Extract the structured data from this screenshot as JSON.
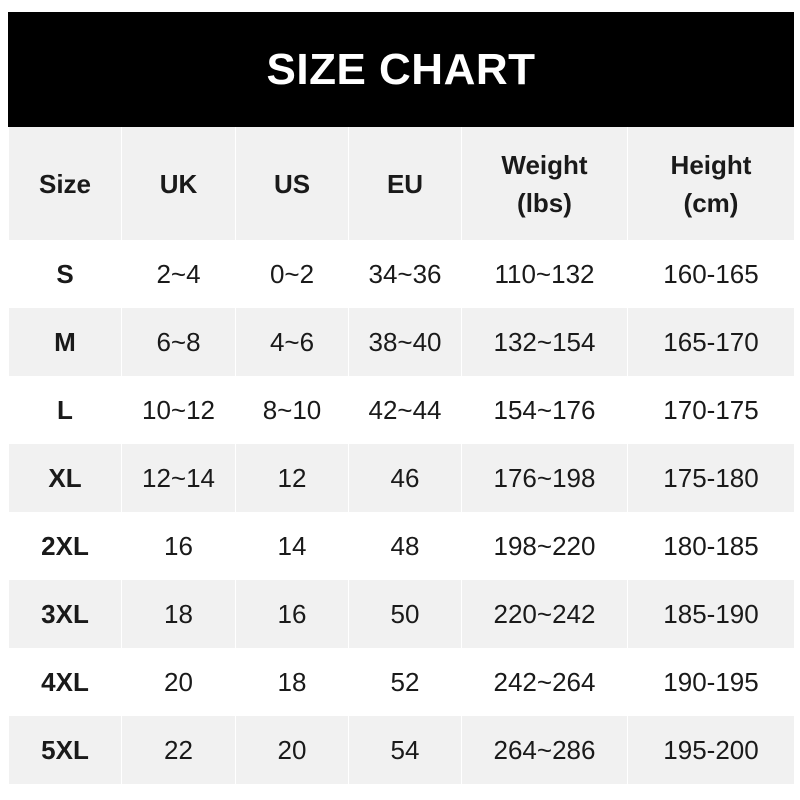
{
  "title": "SIZE CHART",
  "headers": [
    "Size",
    "UK",
    "US",
    "EU",
    "Weight (lbs)",
    "Height (cm)"
  ],
  "rows": [
    [
      "S",
      "2~4",
      "0~2",
      "34~36",
      "110~132",
      "160-165"
    ],
    [
      "M",
      "6~8",
      "4~6",
      "38~40",
      "132~154",
      "165-170"
    ],
    [
      "L",
      "10~12",
      "8~10",
      "42~44",
      "154~176",
      "170-175"
    ],
    [
      "XL",
      "12~14",
      "12",
      "46",
      "176~198",
      "175-180"
    ],
    [
      "2XL",
      "16",
      "14",
      "48",
      "198~220",
      "180-185"
    ],
    [
      "3XL",
      "18",
      "16",
      "50",
      "220~242",
      "185-190"
    ],
    [
      "4XL",
      "20",
      "18",
      "52",
      "242~264",
      "190-195"
    ],
    [
      "5XL",
      "22",
      "20",
      "54",
      "264~286",
      "195-200"
    ]
  ],
  "colors": {
    "title_bg": "#000000",
    "title_text": "#ffffff",
    "stripe": "#f1f1f1",
    "text": "#1a1a1a"
  }
}
